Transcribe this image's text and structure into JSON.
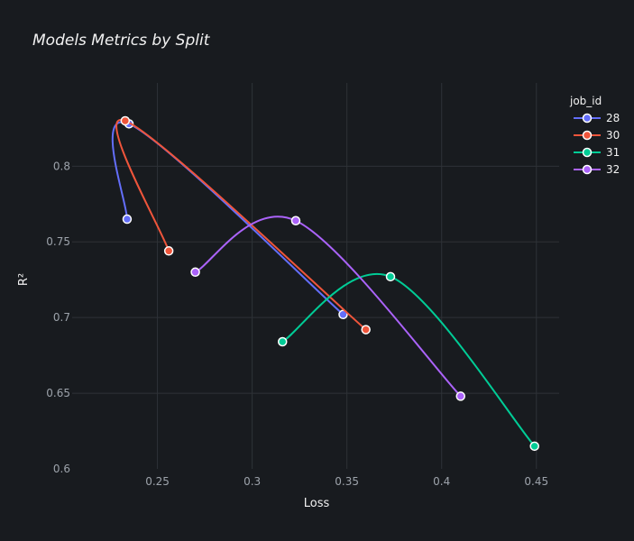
{
  "chart_data": {
    "type": "line",
    "title": "Models Metrics by Split",
    "xlabel": "Loss",
    "ylabel": "R²",
    "xlim": [
      0.205,
      0.462
    ],
    "ylim": [
      0.6,
      0.855
    ],
    "xticks": [
      0.25,
      0.3,
      0.35,
      0.4,
      0.45
    ],
    "xtick_labels": [
      "0.25",
      "0.3",
      "0.35",
      "0.4",
      "0.45"
    ],
    "yticks": [
      0.6,
      0.65,
      0.7,
      0.75,
      0.8
    ],
    "ytick_labels": [
      "0.6",
      "0.65",
      "0.7",
      "0.75",
      "0.8"
    ],
    "grid": true,
    "legend_title": "job_id",
    "legend_position": "top-right",
    "series": [
      {
        "name": "28",
        "color": "#636efa",
        "points": [
          [
            0.234,
            0.765
          ],
          [
            0.235,
            0.828
          ],
          [
            0.348,
            0.702
          ]
        ]
      },
      {
        "name": "30",
        "color": "#ef553b",
        "points": [
          [
            0.256,
            0.744
          ],
          [
            0.233,
            0.83
          ],
          [
            0.36,
            0.692
          ]
        ]
      },
      {
        "name": "31",
        "color": "#00cc96",
        "points": [
          [
            0.316,
            0.684
          ],
          [
            0.373,
            0.727
          ],
          [
            0.449,
            0.615
          ]
        ]
      },
      {
        "name": "32",
        "color": "#ab63fa",
        "points": [
          [
            0.27,
            0.73
          ],
          [
            0.323,
            0.764
          ],
          [
            0.41,
            0.648
          ]
        ]
      }
    ]
  }
}
